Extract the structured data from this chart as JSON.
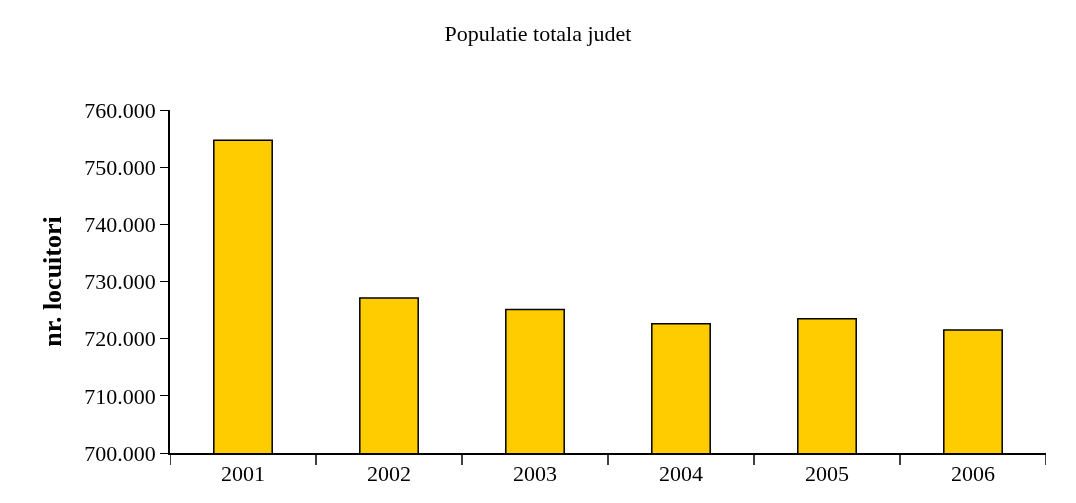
{
  "chart_data": {
    "type": "bar",
    "title": "Populatie totala judet",
    "ylabel": "nr. locuitori",
    "categories": [
      "2001",
      "2002",
      "2003",
      "2004",
      "2005",
      "2006"
    ],
    "values": [
      754700,
      727100,
      725100,
      722600,
      723500,
      721500
    ],
    "color": "#ffcc00",
    "ylim": [
      700000,
      760000
    ],
    "yticks": [
      {
        "value": 700000,
        "label": "700.000"
      },
      {
        "value": 710000,
        "label": "710.000"
      },
      {
        "value": 720000,
        "label": "720.000"
      },
      {
        "value": 730000,
        "label": "730.000"
      },
      {
        "value": 740000,
        "label": "740.000"
      },
      {
        "value": 750000,
        "label": "750.000"
      },
      {
        "value": 760000,
        "label": "760.000"
      }
    ]
  }
}
